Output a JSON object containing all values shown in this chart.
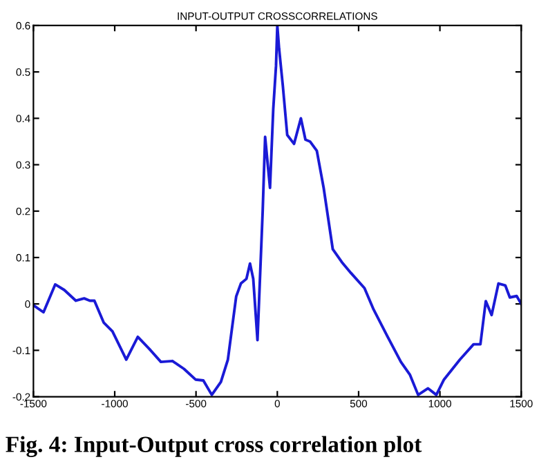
{
  "chart_data": {
    "type": "line",
    "title": "INPUT-OUTPUT CROSSCORRELATIONS",
    "x": [
      -1500,
      -1438,
      -1366,
      -1310,
      -1239,
      -1188,
      -1153,
      -1125,
      -1068,
      -1014,
      -929,
      -858,
      -787,
      -716,
      -645,
      -574,
      -503,
      -455,
      -403,
      -347,
      -304,
      -253,
      -224,
      -190,
      -168,
      -148,
      -122,
      -90,
      -75,
      -45,
      -25,
      -8,
      0,
      11,
      34,
      61,
      103,
      145,
      173,
      201,
      243,
      285,
      341,
      397,
      452,
      536,
      592,
      676,
      760,
      816,
      866,
      927,
      978,
      1025,
      1123,
      1207,
      1249,
      1282,
      1318,
      1360,
      1402,
      1430,
      1472,
      1500
    ],
    "series": [
      {
        "color": "#1a1ad6",
        "values": [
          -0.003,
          -0.018,
          0.042,
          0.03,
          0.007,
          0.012,
          0.007,
          0.007,
          -0.04,
          -0.059,
          -0.12,
          -0.071,
          -0.097,
          -0.125,
          -0.123,
          -0.14,
          -0.163,
          -0.165,
          -0.196,
          -0.168,
          -0.12,
          0.016,
          0.044,
          0.054,
          0.087,
          0.054,
          -0.078,
          0.2,
          0.36,
          0.25,
          0.42,
          0.513,
          0.6,
          0.55,
          0.47,
          0.364,
          0.345,
          0.4,
          0.354,
          0.35,
          0.33,
          0.25,
          0.118,
          0.09,
          0.067,
          0.034,
          -0.012,
          -0.069,
          -0.125,
          -0.153,
          -0.196,
          -0.182,
          -0.196,
          -0.163,
          -0.12,
          -0.087,
          -0.087,
          0.006,
          -0.024,
          0.044,
          0.04,
          0.014,
          0.017,
          0.0
        ]
      }
    ],
    "xlim": [
      -1500,
      1500
    ],
    "xticks": [
      -1500,
      -1000,
      -500,
      0,
      500,
      1000,
      1500
    ],
    "ylim": [
      -0.2,
      0.6
    ],
    "yticks": [
      -0.2,
      -0.1,
      0,
      0.1,
      0.2,
      0.3,
      0.4,
      0.5,
      0.6
    ],
    "grid": false,
    "legend": false,
    "marker": "none",
    "line_style": "solid",
    "annotations": [
      "Fig. 4: Input-Output cross correlation plot"
    ]
  }
}
